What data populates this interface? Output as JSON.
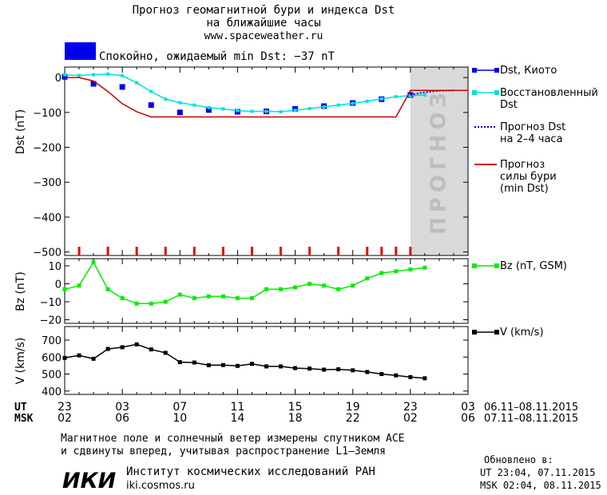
{
  "header": {
    "title_line1": "Прогноз геомагнитной бури и индекса Dst",
    "title_line2": "на ближайшие часы",
    "url": "www.spaceweather.ru",
    "status_text": "Спокойно, ожидаемый min Dst: −37 nT",
    "status_color": "#0000ee"
  },
  "forecast_label": "ПРОГНОЗ",
  "time_axis": {
    "ut_label": "UT",
    "msk_label": "MSK",
    "ut_ticks": [
      "23",
      "03",
      "07",
      "11",
      "15",
      "19",
      "23",
      "03"
    ],
    "msk_ticks": [
      "02",
      "06",
      "10",
      "14",
      "18",
      "22",
      "02",
      "06"
    ],
    "ut_range": "06.11–08.11.2015",
    "msk_range": "07.11–08.11.2015"
  },
  "chart_data": [
    {
      "type": "line",
      "x_unit": "hours since 23 UT 06.11.2015",
      "xlim": [
        0,
        28
      ],
      "ylabel": "Dst (nT)",
      "ylim": [
        -510,
        30
      ],
      "yticks": [
        0,
        -100,
        -200,
        -300,
        -400,
        -500
      ],
      "forecast_region_start": 24,
      "series": [
        {
          "name": "Dst, Киото",
          "color": "#0000ee",
          "marker": "square-filled",
          "x": [
            0,
            2,
            4,
            6,
            8,
            10,
            12,
            14,
            16,
            18,
            20,
            22,
            24
          ],
          "y": [
            2,
            -18,
            -27,
            -79,
            -100,
            -93,
            -98,
            -97,
            -90,
            -82,
            -73,
            -62,
            -50
          ]
        },
        {
          "name": "Восстановленный Dst",
          "color": "#00e0e0",
          "marker": "square-small",
          "x": [
            0,
            1,
            2,
            3,
            4,
            5,
            6,
            7,
            8,
            9,
            10,
            11,
            12,
            13,
            14,
            15,
            16,
            17,
            18,
            19,
            20,
            21,
            22,
            23,
            24,
            25
          ],
          "y": [
            8,
            6,
            8,
            10,
            5,
            -15,
            -40,
            -62,
            -72,
            -79,
            -86,
            -90,
            -95,
            -97,
            -97,
            -98,
            -94,
            -89,
            -84,
            -79,
            -74,
            -68,
            -61,
            -55,
            -52,
            -50
          ]
        },
        {
          "name": "Прогноз Dst на 2–4 часа",
          "color": "#0000ee",
          "style": "dotted",
          "x": [
            24,
            25,
            26,
            27
          ],
          "y": [
            -50,
            -42,
            -38,
            -37
          ]
        },
        {
          "name": "Прогноз силы бури (min Dst)",
          "color": "#cc0000",
          "style": "solid",
          "x": [
            0,
            1,
            2,
            3,
            4,
            5,
            6,
            23,
            24,
            28
          ],
          "y": [
            0,
            0,
            -10,
            -40,
            -75,
            -98,
            -113,
            -113,
            -37,
            -37
          ]
        }
      ],
      "storm_markers_x": [
        1,
        3,
        5,
        7,
        9,
        11,
        13,
        15,
        17,
        19,
        21,
        22,
        23,
        24
      ]
    },
    {
      "type": "line",
      "ylabel": "Bz (nT)",
      "ylim": [
        -22,
        14
      ],
      "yticks": [
        10,
        0,
        -10,
        -20
      ],
      "series": [
        {
          "name": "Bz (nT, GSM)",
          "color": "#00ee00",
          "marker": "square",
          "x": [
            0,
            1,
            2,
            3,
            4,
            5,
            6,
            7,
            8,
            9,
            10,
            11,
            12,
            13,
            14,
            15,
            16,
            17,
            18,
            19,
            20,
            21,
            22,
            23,
            24,
            25
          ],
          "y": [
            -3,
            -1,
            12,
            -3,
            -8,
            -11,
            -11,
            -10,
            -6,
            -8,
            -7,
            -7,
            -8,
            -8,
            -3,
            -3,
            -2,
            0,
            -1,
            -3,
            -1,
            3,
            6,
            7,
            8,
            9
          ]
        }
      ]
    },
    {
      "type": "line",
      "ylabel": "V (km/s)",
      "ylim": [
        380,
        780
      ],
      "yticks": [
        700,
        600,
        500,
        400
      ],
      "series": [
        {
          "name": "V (km/s)",
          "color": "#000000",
          "marker": "square",
          "x": [
            0,
            1,
            2,
            3,
            4,
            5,
            6,
            7,
            8,
            9,
            10,
            11,
            12,
            13,
            14,
            15,
            16,
            17,
            18,
            19,
            20,
            21,
            22,
            23,
            24,
            25
          ],
          "y": [
            595,
            610,
            590,
            648,
            658,
            675,
            645,
            625,
            570,
            568,
            552,
            553,
            548,
            560,
            545,
            545,
            535,
            532,
            526,
            528,
            522,
            512,
            500,
            492,
            482,
            475
          ]
        }
      ]
    }
  ],
  "footer": {
    "note_line1": "Магнитное поле и солнечный ветер измерены спутником ACE",
    "note_line2": "и сдвинуты вперед, учитывая распространение L1–Земля",
    "updated_label": "Обновлено в:",
    "updated_ut": "UT   23:04, 07.11.2015",
    "updated_msk": "MSK 02:04, 08.11.2015",
    "institute_logo": "ИКИ",
    "institute_name": "Институт космических исследований РАН",
    "institute_url": "iki.cosmos.ru"
  }
}
